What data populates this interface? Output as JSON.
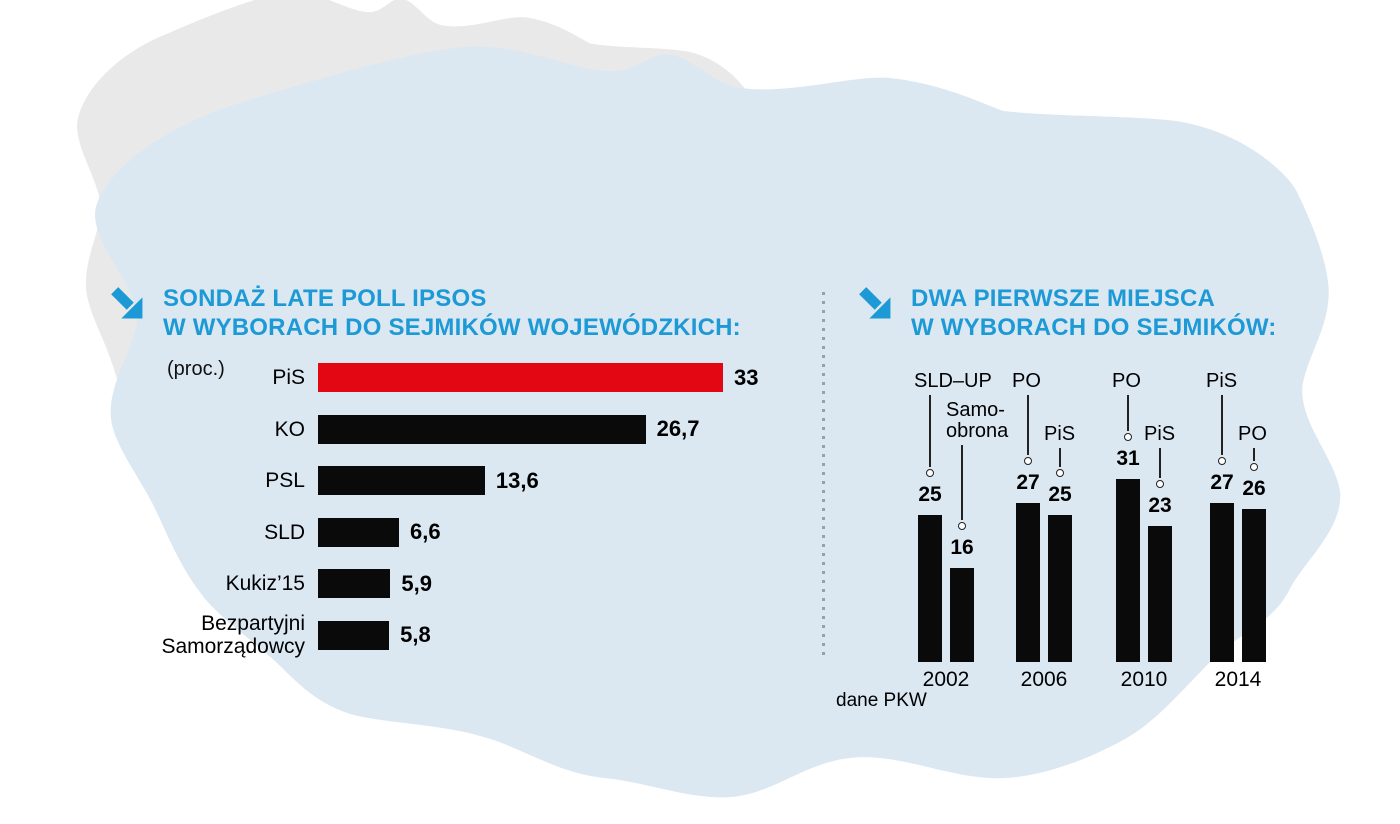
{
  "colors": {
    "accent_blue": "#1d9ad6",
    "bar_black": "#0a0a0a",
    "bar_red": "#e30613",
    "map_gray": "#e9e9e9",
    "map_blue": "#dbe8f2"
  },
  "chart_data": [
    {
      "type": "bar",
      "orientation": "horizontal",
      "title_lines": [
        "SONDAŻ LATE POLL IPSOS",
        "W WYBORACH DO SEJMIKÓW WOJEWÓDZKICH:"
      ],
      "unit_label": "(proc.)",
      "categories": [
        "PiS",
        "KO",
        "PSL",
        "SLD",
        "Kukiz’15",
        "Bezpartyjni Samorządowcy"
      ],
      "values": [
        33,
        26.7,
        13.6,
        6.6,
        5.9,
        5.8
      ],
      "value_labels": [
        "33",
        "26,7",
        "13,6",
        "6,6",
        "5,9",
        "5,8"
      ],
      "bar_colors": [
        "red",
        "black",
        "black",
        "black",
        "black",
        "black"
      ],
      "xlim": [
        0,
        33
      ],
      "grid": false,
      "legend": "none"
    },
    {
      "type": "bar",
      "orientation": "vertical",
      "title_lines": [
        "DWA PIERWSZE MIEJSCA",
        "W WYBORACH DO SEJMIKÓW:"
      ],
      "source_note": "dane PKW",
      "ylim": [
        0,
        33
      ],
      "grid": false,
      "legend": "none",
      "groups": [
        {
          "year": "2002",
          "bars": [
            {
              "party": "SLD–UP",
              "party_lines": [
                "SLD–UP"
              ],
              "value": 25,
              "value_label": "25"
            },
            {
              "party": "Samoobrona",
              "party_lines": [
                "Samo-",
                "obrona"
              ],
              "value": 16,
              "value_label": "16"
            }
          ]
        },
        {
          "year": "2006",
          "bars": [
            {
              "party": "PO",
              "party_lines": [
                "PO"
              ],
              "value": 27,
              "value_label": "27"
            },
            {
              "party": "PiS",
              "party_lines": [
                "PiS"
              ],
              "value": 25,
              "value_label": "25"
            }
          ]
        },
        {
          "year": "2010",
          "bars": [
            {
              "party": "PO",
              "party_lines": [
                "PO"
              ],
              "value": 31,
              "value_label": "31"
            },
            {
              "party": "PiS",
              "party_lines": [
                "PiS"
              ],
              "value": 23,
              "value_label": "23"
            }
          ]
        },
        {
          "year": "2014",
          "bars": [
            {
              "party": "PiS",
              "party_lines": [
                "PiS"
              ],
              "value": 27,
              "value_label": "27"
            },
            {
              "party": "PO",
              "party_lines": [
                "PO"
              ],
              "value": 26,
              "value_label": "26"
            }
          ]
        }
      ]
    }
  ]
}
